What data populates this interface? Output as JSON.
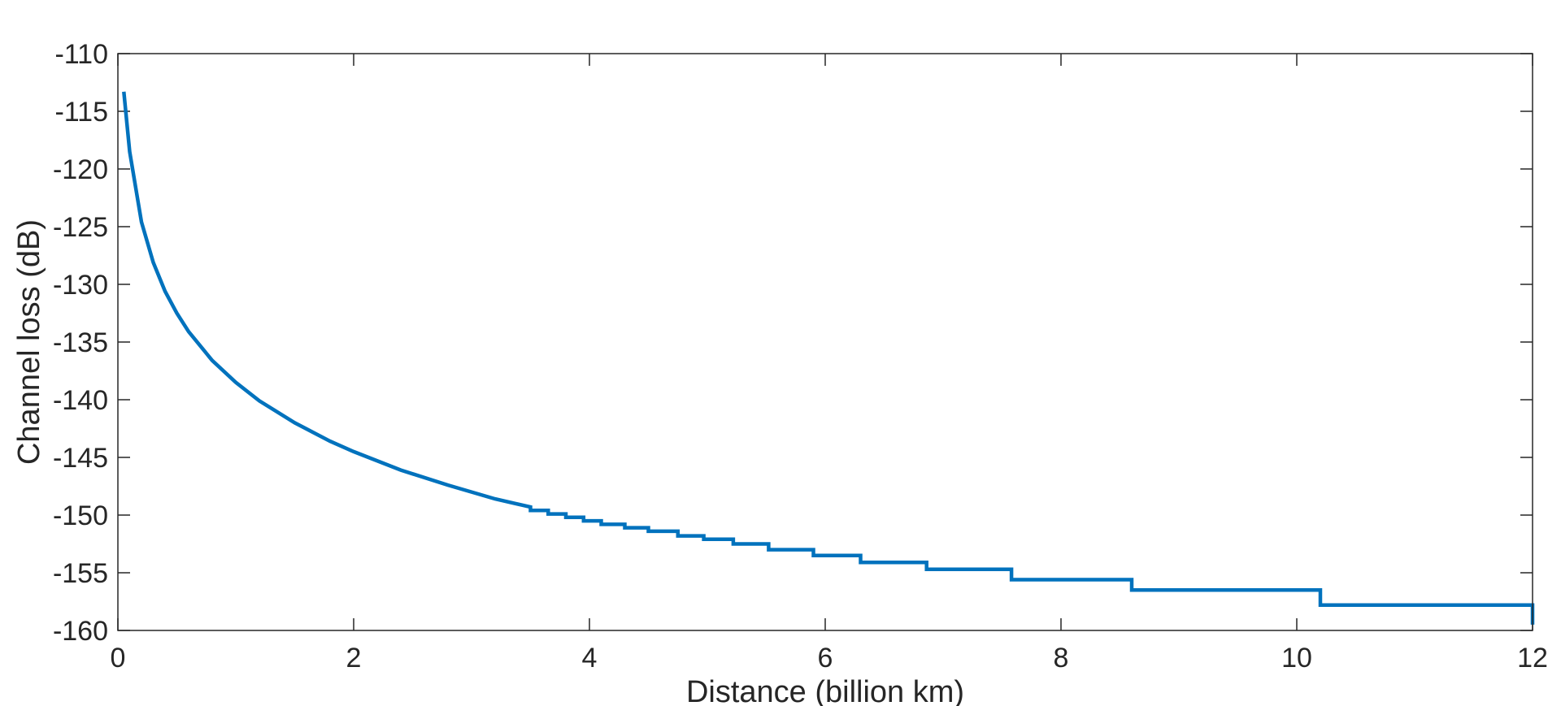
{
  "chart_data": {
    "type": "line",
    "title": "",
    "xlabel": "Distance (billion km)",
    "ylabel": "Channel loss (dB)",
    "xlim": [
      0,
      12
    ],
    "ylim": [
      -160,
      -110
    ],
    "xticks": [
      0,
      2,
      4,
      6,
      8,
      10,
      12
    ],
    "yticks": [
      -110,
      -115,
      -120,
      -125,
      -130,
      -135,
      -140,
      -145,
      -150,
      -155,
      -160
    ],
    "grid": false,
    "line_color": "#0072BD",
    "series": [
      {
        "style": "smooth",
        "x": [
          0.05,
          0.1,
          0.2,
          0.3,
          0.4,
          0.5,
          0.6,
          0.8,
          1.0,
          1.2,
          1.5,
          1.8,
          2.0,
          2.4,
          2.8,
          3.2,
          3.5
        ],
        "y": [
          -113.3,
          -118.5,
          -124.6,
          -128.1,
          -130.6,
          -132.5,
          -134.1,
          -136.6,
          -138.5,
          -140.1,
          -142.0,
          -143.6,
          -144.5,
          -146.1,
          -147.4,
          -148.6,
          -149.3
        ]
      },
      {
        "style": "step",
        "x": [
          3.5,
          3.65,
          3.8,
          3.95,
          4.1,
          4.3,
          4.5,
          4.75,
          4.97,
          5.22,
          5.52,
          5.9,
          6.3,
          6.86,
          7.58,
          8.6,
          10.2,
          12.0
        ],
        "y": [
          -149.6,
          -149.9,
          -150.2,
          -150.5,
          -150.8,
          -151.1,
          -151.4,
          -151.8,
          -152.1,
          -152.5,
          -153.0,
          -153.5,
          -154.1,
          -154.7,
          -155.6,
          -156.5,
          -157.8,
          -159.5
        ]
      }
    ]
  }
}
